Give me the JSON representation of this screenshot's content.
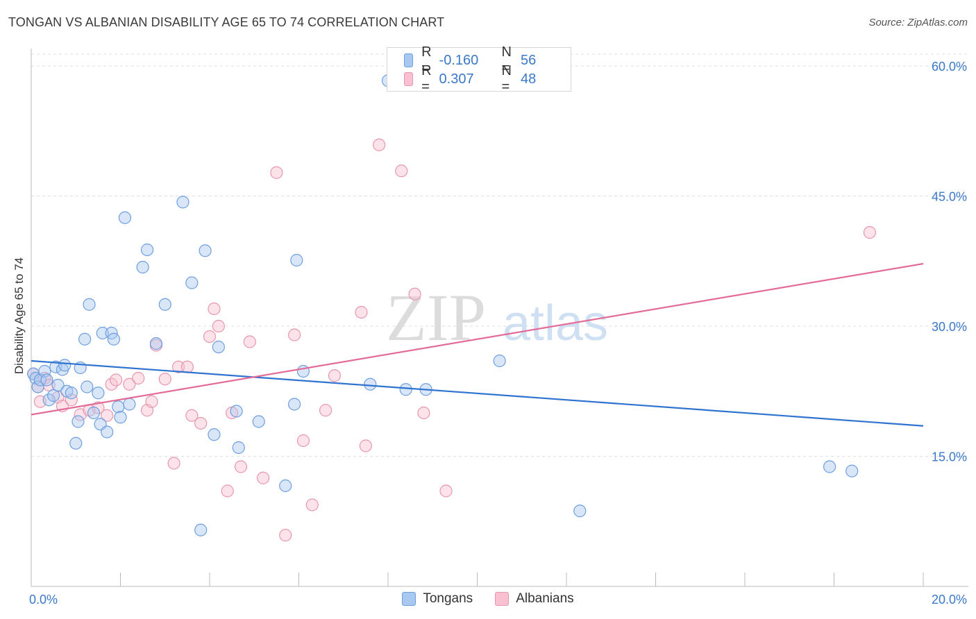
{
  "header": {
    "title": "TONGAN VS ALBANIAN DISABILITY AGE 65 TO 74 CORRELATION CHART",
    "source": "Source: ZipAtlas.com"
  },
  "watermark": {
    "zip": "ZIP",
    "atlas": "atlas"
  },
  "legend": {
    "rows": [
      {
        "r_label": "R =",
        "r_value": "-0.160",
        "n_label": "N =",
        "n_value": "56",
        "color": "#a8c8f0",
        "border": "#6d9ee0"
      },
      {
        "r_label": "R =",
        "r_value": "0.307",
        "n_label": "N =",
        "n_value": "48",
        "color": "#f8c0d0",
        "border": "#e895b0"
      }
    ]
  },
  "bottom_legend": [
    "Tongans",
    "Albanians"
  ],
  "chart_data": {
    "type": "scatter",
    "title": "TONGAN VS ALBANIAN DISABILITY AGE 65 TO 74 CORRELATION CHART",
    "xlabel": "",
    "ylabel": "Disability Age 65 to 74",
    "xlim": [
      0,
      20
    ],
    "ylim": [
      0,
      62
    ],
    "x_tick_labels": [
      "0.0%",
      "20.0%"
    ],
    "y_ticks": [
      15,
      30,
      45,
      60
    ],
    "y_tick_labels": [
      "15.0%",
      "30.0%",
      "45.0%",
      "60.0%"
    ],
    "grid": true,
    "legend_position": "top-center",
    "series": [
      {
        "name": "Tongans",
        "color": "#6d9ee0",
        "fill": "#a8c8f0",
        "trend": {
          "x": [
            0,
            20
          ],
          "y": [
            26.0,
            18.5
          ]
        },
        "points": [
          [
            0.05,
            24.5
          ],
          [
            0.1,
            24.0
          ],
          [
            0.15,
            23.0
          ],
          [
            0.2,
            23.8
          ],
          [
            0.3,
            24.8
          ],
          [
            0.35,
            23.8
          ],
          [
            0.4,
            21.5
          ],
          [
            0.5,
            22.0
          ],
          [
            0.55,
            25.3
          ],
          [
            0.6,
            23.2
          ],
          [
            0.7,
            25.0
          ],
          [
            0.75,
            25.5
          ],
          [
            0.8,
            22.5
          ],
          [
            0.9,
            22.3
          ],
          [
            1.0,
            16.5
          ],
          [
            1.05,
            19.0
          ],
          [
            1.1,
            25.2
          ],
          [
            1.2,
            28.5
          ],
          [
            1.25,
            23.0
          ],
          [
            1.3,
            32.5
          ],
          [
            1.4,
            20.0
          ],
          [
            1.5,
            22.3
          ],
          [
            1.55,
            18.7
          ],
          [
            1.6,
            29.2
          ],
          [
            1.7,
            17.8
          ],
          [
            1.8,
            29.2
          ],
          [
            1.85,
            28.5
          ],
          [
            1.95,
            20.7
          ],
          [
            2.0,
            19.5
          ],
          [
            2.1,
            42.5
          ],
          [
            2.2,
            21.0
          ],
          [
            2.5,
            36.8
          ],
          [
            2.6,
            38.8
          ],
          [
            2.8,
            28.0
          ],
          [
            3.0,
            32.5
          ],
          [
            3.4,
            44.3
          ],
          [
            3.6,
            35.0
          ],
          [
            3.9,
            38.7
          ],
          [
            3.8,
            6.5
          ],
          [
            4.1,
            17.5
          ],
          [
            4.2,
            27.6
          ],
          [
            4.6,
            20.2
          ],
          [
            4.65,
            16.0
          ],
          [
            5.1,
            19.0
          ],
          [
            5.7,
            11.6
          ],
          [
            5.9,
            21.0
          ],
          [
            5.95,
            37.6
          ],
          [
            6.1,
            24.8
          ],
          [
            7.6,
            23.3
          ],
          [
            8.0,
            58.3
          ],
          [
            8.4,
            22.7
          ],
          [
            8.85,
            22.7
          ],
          [
            10.5,
            26.0
          ],
          [
            12.3,
            8.7
          ],
          [
            17.9,
            13.8
          ],
          [
            18.4,
            13.3
          ]
        ]
      },
      {
        "name": "Albanians",
        "color": "#e895b0",
        "fill": "#f8c0d0",
        "trend": {
          "x": [
            0,
            20
          ],
          "y": [
            19.8,
            37.2
          ]
        },
        "points": [
          [
            0.05,
            24.5
          ],
          [
            0.15,
            23.0
          ],
          [
            0.2,
            21.3
          ],
          [
            0.3,
            24.0
          ],
          [
            0.4,
            23.2
          ],
          [
            0.6,
            21.8
          ],
          [
            0.7,
            20.8
          ],
          [
            0.9,
            21.5
          ],
          [
            1.1,
            19.8
          ],
          [
            1.3,
            20.3
          ],
          [
            1.5,
            20.6
          ],
          [
            1.7,
            19.7
          ],
          [
            1.8,
            23.3
          ],
          [
            1.9,
            23.8
          ],
          [
            2.2,
            23.3
          ],
          [
            2.4,
            24.0
          ],
          [
            2.6,
            20.3
          ],
          [
            2.7,
            21.3
          ],
          [
            2.8,
            27.8
          ],
          [
            3.0,
            23.9
          ],
          [
            3.2,
            14.2
          ],
          [
            3.3,
            25.3
          ],
          [
            3.5,
            25.3
          ],
          [
            3.6,
            19.7
          ],
          [
            3.8,
            18.8
          ],
          [
            4.0,
            28.8
          ],
          [
            4.1,
            32.0
          ],
          [
            4.2,
            30.0
          ],
          [
            4.4,
            11.0
          ],
          [
            4.5,
            20.0
          ],
          [
            4.7,
            13.8
          ],
          [
            4.9,
            28.2
          ],
          [
            5.2,
            12.5
          ],
          [
            5.5,
            47.7
          ],
          [
            5.7,
            5.9
          ],
          [
            5.9,
            29.0
          ],
          [
            6.1,
            16.8
          ],
          [
            6.3,
            9.4
          ],
          [
            6.6,
            20.3
          ],
          [
            6.8,
            24.3
          ],
          [
            7.4,
            31.6
          ],
          [
            7.5,
            16.2
          ],
          [
            7.8,
            50.9
          ],
          [
            8.3,
            47.9
          ],
          [
            8.6,
            33.7
          ],
          [
            8.8,
            20.0
          ],
          [
            9.3,
            11.0
          ],
          [
            18.8,
            40.8
          ]
        ]
      }
    ]
  }
}
